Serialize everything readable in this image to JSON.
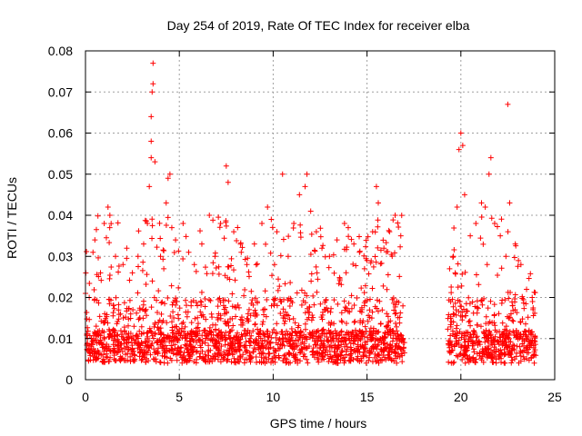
{
  "chart_data": {
    "type": "scatter",
    "title": "Day 254 of 2019, Rate Of TEC Index for receiver elba",
    "xlabel": "GPS time / hours",
    "ylabel": "ROTI / TECUs",
    "xlim": [
      0,
      25
    ],
    "ylim": [
      0,
      0.08
    ],
    "xticks": [
      0,
      5,
      10,
      15,
      20,
      25
    ],
    "xtick_labels": [
      "0",
      "5",
      "10",
      "15",
      "20",
      "25"
    ],
    "yticks": [
      0,
      0.01,
      0.02,
      0.03,
      0.04,
      0.05,
      0.06,
      0.07,
      0.08
    ],
    "ytick_labels": [
      "0",
      "0.01",
      "0.02",
      "0.03",
      "0.04",
      "0.05",
      "0.06",
      "0.07",
      "0.08"
    ],
    "grid": true,
    "marker": "+",
    "color": "#ff0000",
    "data_gap_hours": [
      17.0,
      19.3
    ],
    "series": [
      {
        "name": "ROTI",
        "points": [
          [
            0.0,
            0.021
          ],
          [
            0.2,
            0.02
          ],
          [
            0.4,
            0.031
          ],
          [
            0.5,
            0.034
          ],
          [
            0.8,
            0.026
          ],
          [
            1.0,
            0.038
          ],
          [
            1.2,
            0.042
          ],
          [
            1.3,
            0.04
          ],
          [
            1.6,
            0.03
          ],
          [
            2.0,
            0.028
          ],
          [
            2.2,
            0.032
          ],
          [
            2.5,
            0.026
          ],
          [
            2.8,
            0.03
          ],
          [
            3.1,
            0.033
          ],
          [
            3.3,
            0.038
          ],
          [
            3.4,
            0.047
          ],
          [
            3.5,
            0.054
          ],
          [
            3.5,
            0.058
          ],
          [
            3.5,
            0.064
          ],
          [
            3.55,
            0.07
          ],
          [
            3.6,
            0.072
          ],
          [
            3.6,
            0.077
          ],
          [
            3.7,
            0.053
          ],
          [
            4.0,
            0.03
          ],
          [
            4.3,
            0.043
          ],
          [
            4.4,
            0.049
          ],
          [
            4.5,
            0.05
          ],
          [
            4.6,
            0.037
          ],
          [
            4.8,
            0.034
          ],
          [
            5.2,
            0.038
          ],
          [
            5.5,
            0.031
          ],
          [
            5.8,
            0.028
          ],
          [
            6.2,
            0.033
          ],
          [
            6.6,
            0.04
          ],
          [
            6.9,
            0.03
          ],
          [
            7.2,
            0.038
          ],
          [
            7.5,
            0.052
          ],
          [
            7.6,
            0.048
          ],
          [
            7.9,
            0.036
          ],
          [
            8.3,
            0.031
          ],
          [
            8.6,
            0.028
          ],
          [
            9.0,
            0.033
          ],
          [
            9.4,
            0.038
          ],
          [
            9.7,
            0.042
          ],
          [
            9.9,
            0.039
          ],
          [
            10.2,
            0.036
          ],
          [
            10.5,
            0.05
          ],
          [
            10.8,
            0.03
          ],
          [
            11.1,
            0.038
          ],
          [
            11.4,
            0.045
          ],
          [
            11.7,
            0.047
          ],
          [
            11.8,
            0.05
          ],
          [
            12.0,
            0.041
          ],
          [
            12.3,
            0.036
          ],
          [
            12.6,
            0.032
          ],
          [
            13.0,
            0.03
          ],
          [
            13.4,
            0.034
          ],
          [
            13.8,
            0.038
          ],
          [
            14.0,
            0.037
          ],
          [
            14.3,
            0.033
          ],
          [
            14.6,
            0.031
          ],
          [
            15.0,
            0.029
          ],
          [
            15.3,
            0.036
          ],
          [
            15.5,
            0.047
          ],
          [
            15.6,
            0.043
          ],
          [
            15.9,
            0.032
          ],
          [
            16.2,
            0.036
          ],
          [
            16.5,
            0.04
          ],
          [
            16.8,
            0.035
          ],
          [
            19.4,
            0.027
          ],
          [
            19.6,
            0.03
          ],
          [
            19.8,
            0.042
          ],
          [
            19.9,
            0.056
          ],
          [
            20.0,
            0.06
          ],
          [
            20.1,
            0.057
          ],
          [
            20.2,
            0.045
          ],
          [
            20.5,
            0.035
          ],
          [
            20.8,
            0.038
          ],
          [
            21.1,
            0.043
          ],
          [
            21.3,
            0.042
          ],
          [
            21.5,
            0.05
          ],
          [
            21.6,
            0.054
          ],
          [
            21.8,
            0.038
          ],
          [
            22.1,
            0.035
          ],
          [
            22.4,
            0.03
          ],
          [
            22.5,
            0.067
          ],
          [
            22.6,
            0.043
          ],
          [
            22.9,
            0.033
          ],
          [
            23.2,
            0.028
          ],
          [
            23.5,
            0.022
          ],
          [
            23.8,
            0.02
          ]
        ]
      }
    ]
  }
}
